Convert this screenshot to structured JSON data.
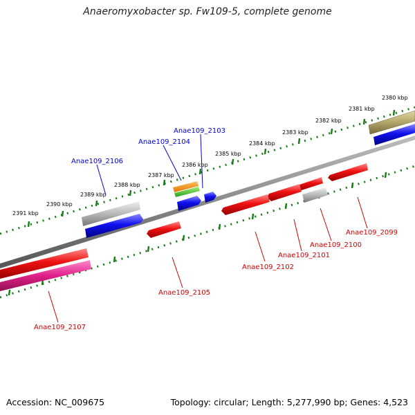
{
  "title": "Anaeromyxobacter sp. Fw109-5, complete genome",
  "footer": {
    "accession": "Accession: NC_009675",
    "topology": "Topology: circular; Length: 5,277,990 bp; Genes: 4,523"
  },
  "colors": {
    "backbone": "#8a8a8a",
    "tick": "#1a7a1a",
    "forward_label": "#0000cc",
    "reverse_label": "#cc0000",
    "red_gene": "#ee1111",
    "blue_gene": "#1111ee",
    "gray_gene": "#b8b8b8",
    "olive_gene": "#b0a66a",
    "magenta_gene": "#e0208a"
  },
  "ruler": {
    "ticks": [
      {
        "label": "2380 kbp"
      },
      {
        "label": "2381 kbp"
      },
      {
        "label": "2382 kbp"
      },
      {
        "label": "2383 kbp"
      },
      {
        "label": "2384 kbp"
      },
      {
        "label": "2385 kbp"
      },
      {
        "label": "2386 kbp"
      },
      {
        "label": "2387 kbp"
      },
      {
        "label": "2388 kbp"
      },
      {
        "label": "2389 kbp"
      },
      {
        "label": "2390 kbp"
      },
      {
        "label": "2391 kbp"
      }
    ]
  },
  "labels": {
    "forward": [
      "Anae109_2103",
      "Anae109_2104",
      "Anae109_2106"
    ],
    "reverse": [
      "Anae109_2099",
      "Anae109_2100",
      "Anae109_2101",
      "Anae109_2102",
      "Anae109_2105",
      "Anae109_2107"
    ]
  }
}
